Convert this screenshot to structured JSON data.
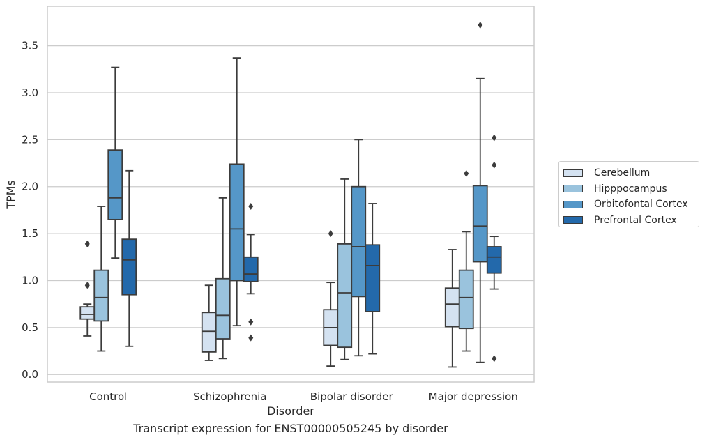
{
  "chart_data": {
    "type": "boxplot",
    "xlabel": "Disorder",
    "ylabel": "TPMs",
    "categories": [
      "Control",
      "Schizophrenia",
      "Bipolar disorder",
      "Major depression"
    ],
    "ylim": [
      -0.08,
      3.92
    ],
    "yticks": [
      "0.0",
      "0.5",
      "1.0",
      "1.5",
      "2.0",
      "2.5",
      "3.0",
      "3.5"
    ],
    "grid": "horizontal",
    "legend_position": "right",
    "series": [
      {
        "name": "Cerebellum",
        "color": "#d4e2f1",
        "boxes": [
          {
            "whislo": 0.41,
            "q1": 0.59,
            "med": 0.64,
            "q3": 0.72,
            "whishi": 0.75,
            "fliers": [
              0.95,
              1.39
            ]
          },
          {
            "whislo": 0.15,
            "q1": 0.24,
            "med": 0.46,
            "q3": 0.66,
            "whishi": 0.95,
            "fliers": []
          },
          {
            "whislo": 0.09,
            "q1": 0.31,
            "med": 0.5,
            "q3": 0.69,
            "whishi": 0.98,
            "fliers": [
              1.5
            ]
          },
          {
            "whislo": 0.08,
            "q1": 0.51,
            "med": 0.75,
            "q3": 0.92,
            "whishi": 1.33,
            "fliers": []
          }
        ]
      },
      {
        "name": "Hipppocampus",
        "color": "#9ac3dd",
        "boxes": [
          {
            "whislo": 0.25,
            "q1": 0.57,
            "med": 0.82,
            "q3": 1.11,
            "whishi": 1.79,
            "fliers": []
          },
          {
            "whislo": 0.17,
            "q1": 0.38,
            "med": 0.63,
            "q3": 1.02,
            "whishi": 1.88,
            "fliers": []
          },
          {
            "whislo": 0.16,
            "q1": 0.29,
            "med": 0.87,
            "q3": 1.39,
            "whishi": 2.08,
            "fliers": []
          },
          {
            "whislo": 0.25,
            "q1": 0.49,
            "med": 0.82,
            "q3": 1.11,
            "whishi": 1.52,
            "fliers": [
              2.14
            ]
          }
        ]
      },
      {
        "name": "Orbitofontal Cortex",
        "color": "#5597c8",
        "boxes": [
          {
            "whislo": 1.24,
            "q1": 1.65,
            "med": 1.88,
            "q3": 2.39,
            "whishi": 3.27,
            "fliers": []
          },
          {
            "whislo": 0.52,
            "q1": 1.0,
            "med": 1.55,
            "q3": 2.24,
            "whishi": 3.37,
            "fliers": []
          },
          {
            "whislo": 0.2,
            "q1": 0.83,
            "med": 1.36,
            "q3": 2.0,
            "whishi": 2.5,
            "fliers": []
          },
          {
            "whislo": 0.13,
            "q1": 1.2,
            "med": 1.58,
            "q3": 2.01,
            "whishi": 3.15,
            "fliers": [
              3.72
            ]
          }
        ]
      },
      {
        "name": "Prefrontal Cortex",
        "color": "#2369ab",
        "boxes": [
          {
            "whislo": 0.3,
            "q1": 0.85,
            "med": 1.22,
            "q3": 1.44,
            "whishi": 2.17,
            "fliers": []
          },
          {
            "whislo": 0.86,
            "q1": 0.99,
            "med": 1.07,
            "q3": 1.25,
            "whishi": 1.49,
            "fliers": [
              0.39,
              0.56,
              1.79
            ]
          },
          {
            "whislo": 0.22,
            "q1": 0.67,
            "med": 1.16,
            "q3": 1.38,
            "whishi": 1.82,
            "fliers": []
          },
          {
            "whislo": 0.91,
            "q1": 1.08,
            "med": 1.25,
            "q3": 1.36,
            "whishi": 1.47,
            "fliers": [
              0.17,
              2.23,
              2.52
            ]
          }
        ]
      }
    ]
  },
  "caption": "Transcript expression for ENST00000505245 by disorder"
}
